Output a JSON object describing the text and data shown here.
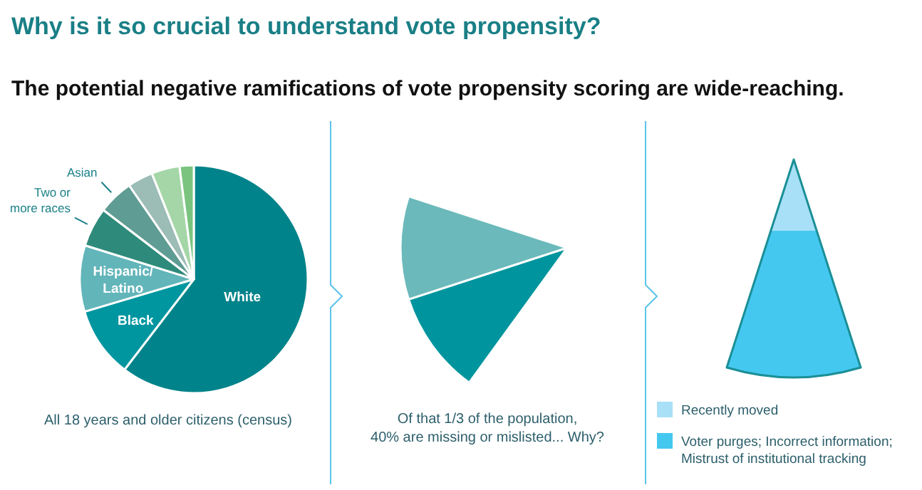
{
  "chart_data": [
    {
      "type": "pie",
      "title": "Why is it so crucial to understand vote propensity?",
      "subtitle": "The potential negative ramifications of vote propensity scoring are wide-reaching.",
      "categories": [
        "White",
        "Black",
        "Hispanic/Latino",
        "Two or more races",
        "Asian",
        null,
        null,
        null
      ],
      "values": [
        60.4,
        10,
        9.4,
        5.6,
        5,
        3.6,
        4,
        2
      ],
      "colors": [
        "#00838a",
        "#0096a0",
        "#62b5b9",
        "#2e8a7a",
        "#5f9c93",
        "#9cbcb6",
        "#a5d6a7",
        "#7ac47f"
      ],
      "annotations": [
        "All 18 years and older citizens (census)"
      ]
    },
    {
      "type": "other",
      "annotations": [
        "Of that 1/3 of the population, 40% are missing or mislisted... Why?"
      ]
    },
    {
      "type": "other",
      "categories": [
        "Recently moved",
        "Voter purges; Incorrect information; Mistrust of institutional tracking"
      ],
      "colors": [
        "#a8e0f7",
        "#45c8f0"
      ]
    }
  ]
}
